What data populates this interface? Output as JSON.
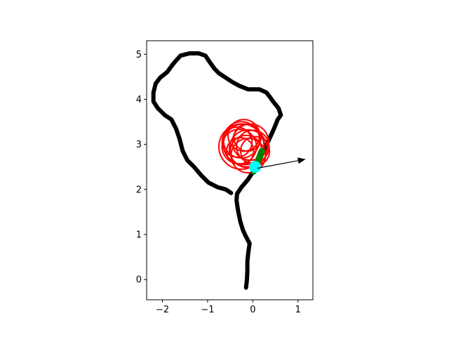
{
  "chart_data": {
    "type": "scatter",
    "title": "",
    "xlabel": "",
    "ylabel": "",
    "xlim": [
      -2.35,
      1.33
    ],
    "ylim": [
      -0.45,
      5.3
    ],
    "x_ticks": [
      -2,
      -1,
      0,
      1
    ],
    "x_tick_labels": [
      "−2",
      "−1",
      "0",
      "1"
    ],
    "y_ticks": [
      0,
      1,
      2,
      3,
      4,
      5
    ],
    "y_tick_labels": [
      "0",
      "1",
      "2",
      "3",
      "4",
      "5"
    ],
    "grid": false,
    "series": [
      {
        "kind": "trajectory",
        "color": "#000000",
        "points": [
          [
            -0.15,
            -0.18
          ],
          [
            -0.13,
            0.0
          ],
          [
            -0.12,
            0.2
          ],
          [
            -0.12,
            0.4
          ],
          [
            -0.1,
            0.6
          ],
          [
            -0.07,
            0.8
          ],
          [
            -0.15,
            0.95
          ],
          [
            -0.22,
            1.1
          ],
          [
            -0.28,
            1.3
          ],
          [
            -0.33,
            1.55
          ],
          [
            -0.36,
            1.75
          ],
          [
            -0.35,
            1.9
          ],
          [
            -0.25,
            2.05
          ],
          [
            -0.12,
            2.2
          ],
          [
            0.0,
            2.38
          ],
          [
            0.1,
            2.55
          ],
          [
            0.18,
            2.72
          ],
          [
            0.28,
            2.95
          ],
          [
            0.38,
            3.15
          ],
          [
            0.47,
            3.35
          ],
          [
            0.55,
            3.55
          ],
          [
            0.62,
            3.65
          ],
          [
            0.57,
            3.8
          ],
          [
            0.45,
            3.95
          ],
          [
            0.38,
            4.05
          ],
          [
            0.3,
            4.15
          ],
          [
            0.15,
            4.22
          ],
          [
            -0.1,
            4.22
          ],
          [
            -0.3,
            4.3
          ],
          [
            -0.45,
            4.38
          ],
          [
            -0.6,
            4.48
          ],
          [
            -0.75,
            4.58
          ],
          [
            -0.85,
            4.68
          ],
          [
            -0.95,
            4.82
          ],
          [
            -1.05,
            4.97
          ],
          [
            -1.2,
            5.02
          ],
          [
            -1.4,
            5.02
          ],
          [
            -1.6,
            4.97
          ],
          [
            -1.75,
            4.8
          ],
          [
            -1.9,
            4.6
          ],
          [
            -2.05,
            4.48
          ],
          [
            -2.15,
            4.35
          ],
          [
            -2.2,
            4.15
          ],
          [
            -2.2,
            3.95
          ],
          [
            -2.1,
            3.8
          ],
          [
            -1.95,
            3.65
          ],
          [
            -1.8,
            3.55
          ],
          [
            -1.7,
            3.35
          ],
          [
            -1.62,
            3.12
          ],
          [
            -1.55,
            2.85
          ],
          [
            -1.45,
            2.65
          ],
          [
            -1.3,
            2.5
          ],
          [
            -1.15,
            2.32
          ],
          [
            -0.98,
            2.15
          ],
          [
            -0.78,
            2.05
          ],
          [
            -0.6,
            2.0
          ],
          [
            -0.48,
            1.92
          ]
        ]
      },
      {
        "kind": "circles",
        "color": "#ff0000",
        "circles": [
          [
            -0.2,
            3.0,
            0.45
          ],
          [
            -0.3,
            2.95,
            0.38
          ],
          [
            -0.1,
            2.9,
            0.42
          ],
          [
            -0.25,
            3.1,
            0.4
          ],
          [
            -0.05,
            3.05,
            0.4
          ],
          [
            -0.15,
            2.85,
            0.35
          ],
          [
            -0.35,
            3.05,
            0.33
          ],
          [
            0.0,
            2.95,
            0.36
          ],
          [
            -0.2,
            3.2,
            0.35
          ],
          [
            -0.1,
            2.75,
            0.38
          ],
          [
            -0.28,
            2.85,
            0.3
          ],
          [
            -0.12,
            3.15,
            0.3
          ],
          [
            -0.25,
            2.95,
            0.5
          ],
          [
            0.05,
            2.85,
            0.32
          ]
        ]
      },
      {
        "kind": "segment",
        "color": "#008000",
        "points": [
          [
            0.02,
            2.4
          ],
          [
            0.08,
            2.55
          ],
          [
            0.14,
            2.7
          ],
          [
            0.2,
            2.85
          ]
        ]
      },
      {
        "kind": "marker",
        "color": "#00ffff",
        "point": [
          0.05,
          2.5
        ],
        "radius": 0.13
      },
      {
        "kind": "arrow",
        "color": "#000000",
        "from": [
          0.1,
          2.47
        ],
        "to": [
          1.17,
          2.67
        ]
      }
    ]
  }
}
